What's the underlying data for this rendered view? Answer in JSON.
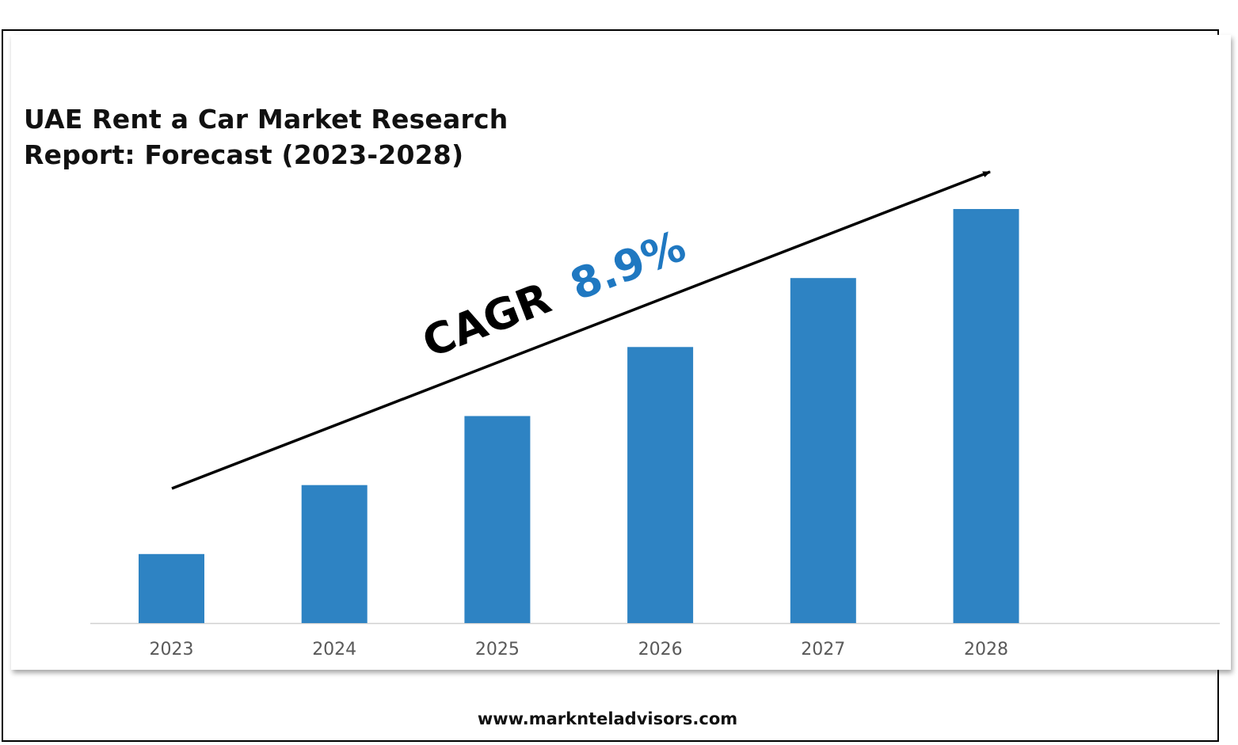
{
  "title_lines": [
    "UAE Rent a Car Market Research",
    "Report: Forecast (2023-2028)"
  ],
  "cagr": {
    "label": "CAGR",
    "value": "8.9%"
  },
  "footer": "www.marknteladvisors.com",
  "colors": {
    "bar": "#2e83c3",
    "cagr_value": "#1f78c1",
    "axis_text": "#595959",
    "arrow": "#000000"
  },
  "chart_data": {
    "type": "bar",
    "title": "UAE Rent a Car Market Research Report: Forecast (2023-2028)",
    "categories": [
      "2023",
      "2024",
      "2025",
      "2026",
      "2027",
      "2028"
    ],
    "values": [
      1.0,
      2.0,
      3.0,
      4.0,
      5.0,
      6.0
    ],
    "xlabel": "",
    "ylabel": "",
    "ylim": [
      0,
      6.0
    ],
    "grid": false,
    "legend": "none",
    "annotations": [
      "CAGR 8.9%"
    ]
  }
}
